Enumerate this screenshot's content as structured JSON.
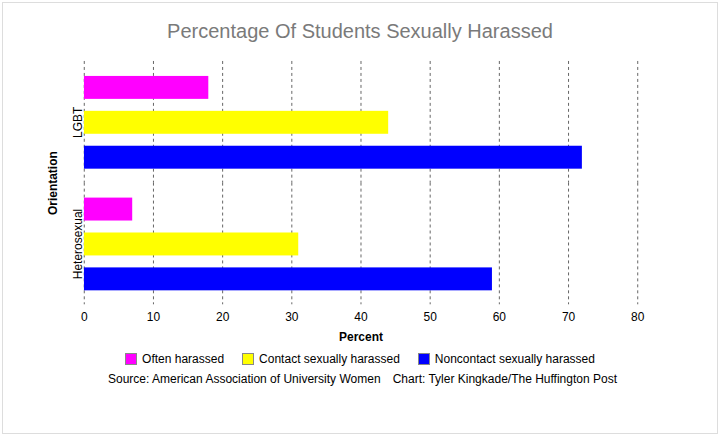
{
  "chart_data": {
    "type": "bar",
    "orientation": "horizontal",
    "title": "Percentage Of Students Sexually Harassed",
    "xlabel": "Percent",
    "ylabel": "Orientation",
    "categories": [
      "LGBT",
      "Heterosexual"
    ],
    "series": [
      {
        "name": "Often harassed",
        "color": "#ff00ff",
        "values": [
          18,
          7
        ]
      },
      {
        "name": "Contact sexually harassed",
        "color": "#ffff00",
        "values": [
          44,
          31
        ]
      },
      {
        "name": "Noncontact sexually harassed",
        "color": "#0000ff",
        "values": [
          72,
          59
        ]
      }
    ],
    "xlim": [
      0,
      80
    ],
    "xticks": [
      0,
      10,
      20,
      30,
      40,
      50,
      60,
      70,
      80
    ],
    "grid": true,
    "legend": "bottom",
    "annotations": [
      "Source: American Association of University Women",
      "Chart: Tyler Kingkade/The Huffington Post"
    ]
  }
}
